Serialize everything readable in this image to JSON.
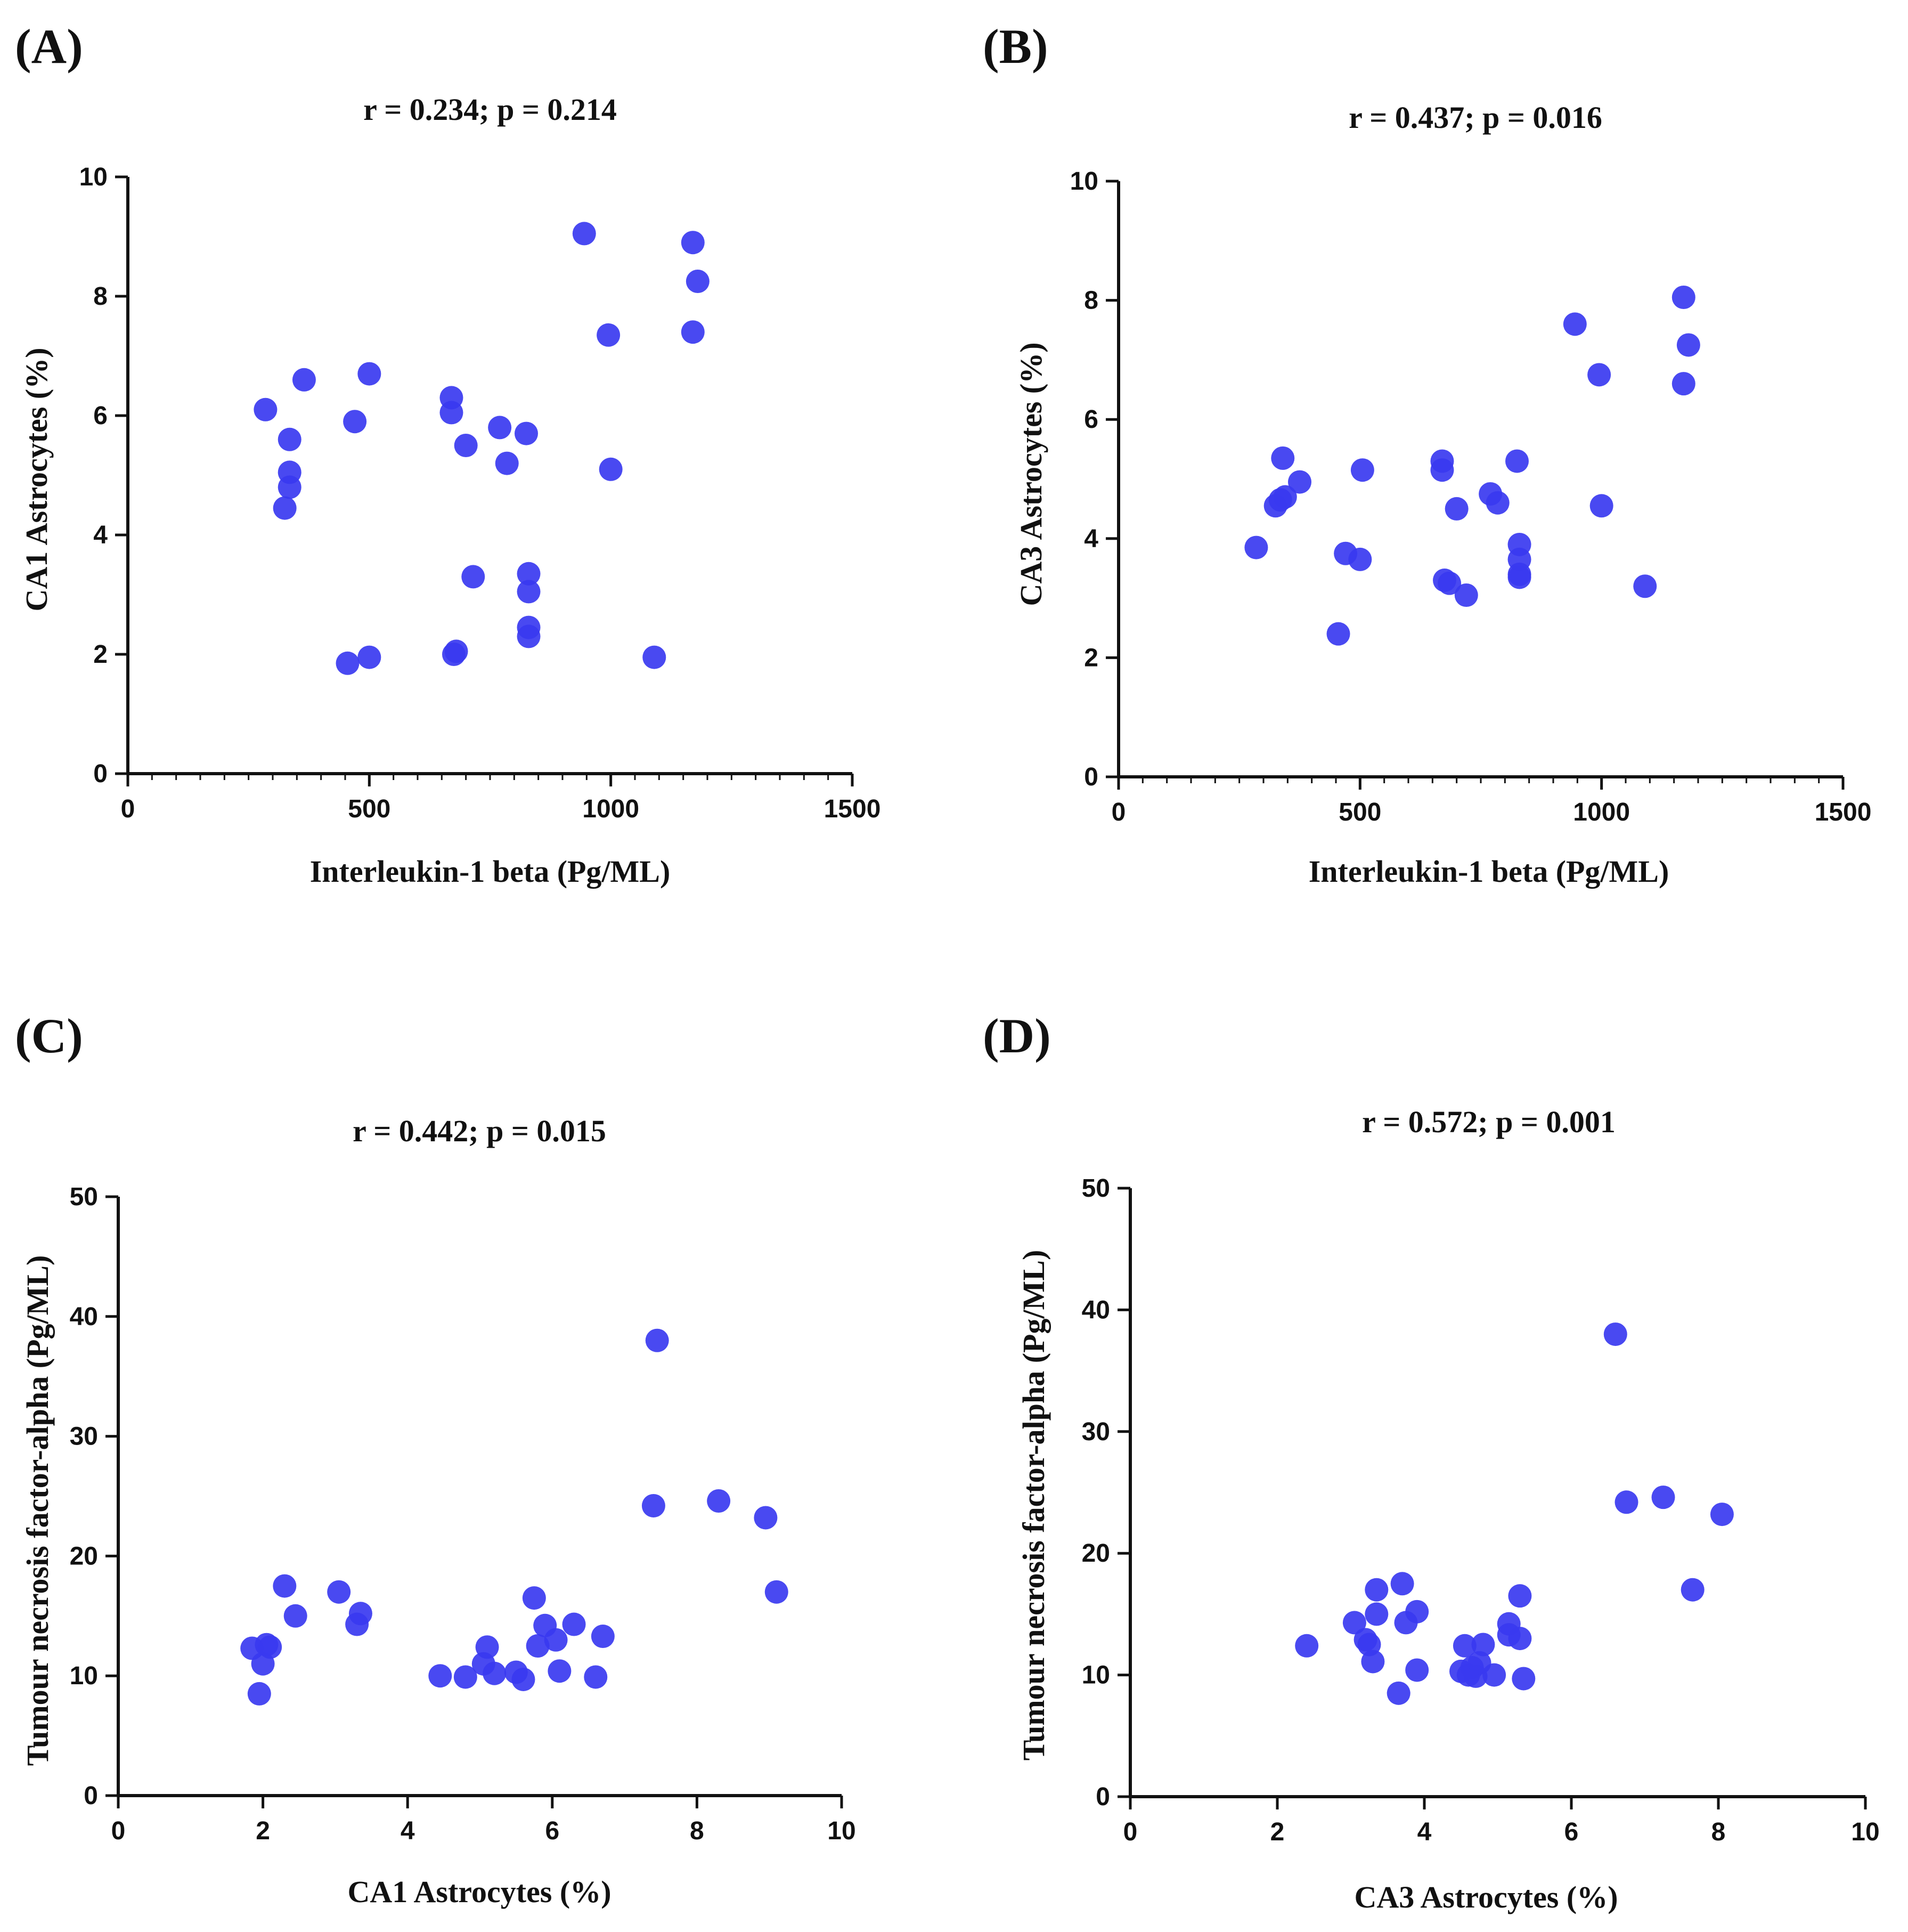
{
  "chart_data": [
    {
      "type": "scatter",
      "panel_label": "(A)",
      "title": "r = 0.234; p = 0.214",
      "xlabel": "Interleukin-1 beta (Pg/ML)",
      "ylabel": "CA1 Astrocytes (%)",
      "xlim": [
        0,
        1500
      ],
      "ylim": [
        0,
        10
      ],
      "xticks": [
        "0",
        "500",
        "1000",
        "1500"
      ],
      "yticks": [
        "0",
        "2",
        "4",
        "6",
        "8",
        "10"
      ],
      "marker_color": "#3a3af0",
      "points": [
        [
          285,
          6.1
        ],
        [
          325,
          4.45
        ],
        [
          335,
          5.6
        ],
        [
          335,
          5.05
        ],
        [
          335,
          4.8
        ],
        [
          365,
          6.6
        ],
        [
          455,
          1.85
        ],
        [
          470,
          5.9
        ],
        [
          500,
          1.95
        ],
        [
          500,
          6.7
        ],
        [
          670,
          6.3
        ],
        [
          670,
          6.05
        ],
        [
          675,
          2.0
        ],
        [
          680,
          2.05
        ],
        [
          700,
          5.5
        ],
        [
          715,
          3.3
        ],
        [
          770,
          5.8
        ],
        [
          785,
          5.2
        ],
        [
          825,
          5.7
        ],
        [
          830,
          3.35
        ],
        [
          830,
          3.05
        ],
        [
          830,
          2.45
        ],
        [
          830,
          2.3
        ],
        [
          945,
          9.05
        ],
        [
          995,
          7.35
        ],
        [
          1000,
          5.1
        ],
        [
          1090,
          1.95
        ],
        [
          1170,
          8.9
        ],
        [
          1170,
          7.4
        ],
        [
          1180,
          8.25
        ]
      ]
    },
    {
      "type": "scatter",
      "panel_label": "(B)",
      "title": "r = 0.437; p = 0.016",
      "xlabel": "Interleukin-1 beta (Pg/ML)",
      "ylabel": "CA3 Astrocytes (%)",
      "xlim": [
        0,
        1500
      ],
      "ylim": [
        0,
        10
      ],
      "xticks": [
        "0",
        "500",
        "1000",
        "1500"
      ],
      "yticks": [
        "0",
        "2",
        "4",
        "6",
        "8",
        "10"
      ],
      "marker_color": "#3a3af0",
      "points": [
        [
          285,
          3.85
        ],
        [
          325,
          4.55
        ],
        [
          335,
          4.65
        ],
        [
          340,
          5.35
        ],
        [
          345,
          4.7
        ],
        [
          375,
          4.95
        ],
        [
          455,
          2.4
        ],
        [
          470,
          3.75
        ],
        [
          500,
          3.65
        ],
        [
          505,
          5.15
        ],
        [
          670,
          5.3
        ],
        [
          670,
          5.15
        ],
        [
          675,
          3.3
        ],
        [
          685,
          3.25
        ],
        [
          700,
          4.5
        ],
        [
          720,
          3.05
        ],
        [
          770,
          4.75
        ],
        [
          785,
          4.6
        ],
        [
          825,
          5.3
        ],
        [
          830,
          3.9
        ],
        [
          830,
          3.65
        ],
        [
          830,
          3.4
        ],
        [
          830,
          3.35
        ],
        [
          945,
          7.6
        ],
        [
          995,
          6.75
        ],
        [
          1000,
          4.55
        ],
        [
          1090,
          3.2
        ],
        [
          1170,
          8.05
        ],
        [
          1170,
          6.6
        ],
        [
          1180,
          7.25
        ]
      ]
    },
    {
      "type": "scatter",
      "panel_label": "(C)",
      "title": "r = 0.442; p = 0.015",
      "xlabel": "CA1 Astrocytes (%)",
      "ylabel": "Tumour necrosis factor-alpha (Pg/ML)",
      "xlim": [
        0,
        10
      ],
      "ylim": [
        0,
        50
      ],
      "xticks": [
        "0",
        "2",
        "4",
        "6",
        "8",
        "10"
      ],
      "yticks": [
        "0",
        "10",
        "20",
        "30",
        "40",
        "50"
      ],
      "marker_color": "#3a3af0",
      "points": [
        [
          1.85,
          12.3
        ],
        [
          1.95,
          8.5
        ],
        [
          2.0,
          11.0
        ],
        [
          2.05,
          12.6
        ],
        [
          2.1,
          12.4
        ],
        [
          2.3,
          17.5
        ],
        [
          2.45,
          15.0
        ],
        [
          3.05,
          17.0
        ],
        [
          3.3,
          14.3
        ],
        [
          3.35,
          15.2
        ],
        [
          4.45,
          10.0
        ],
        [
          4.8,
          9.9
        ],
        [
          5.05,
          11.0
        ],
        [
          5.1,
          12.4
        ],
        [
          5.2,
          10.2
        ],
        [
          5.5,
          10.3
        ],
        [
          5.6,
          9.7
        ],
        [
          5.75,
          16.5
        ],
        [
          5.8,
          12.5
        ],
        [
          5.9,
          14.2
        ],
        [
          6.05,
          13.0
        ],
        [
          6.1,
          10.4
        ],
        [
          6.3,
          14.3
        ],
        [
          6.6,
          9.9
        ],
        [
          6.7,
          13.3
        ],
        [
          7.4,
          24.2
        ],
        [
          7.45,
          38.0
        ],
        [
          8.3,
          24.6
        ],
        [
          8.95,
          23.2
        ],
        [
          9.1,
          17.0
        ]
      ]
    },
    {
      "type": "scatter",
      "panel_label": "(D)",
      "title": "r = 0.572; p = 0.001",
      "xlabel": "CA3 Astrocytes (%)",
      "ylabel": "Tumour necrosis factor-alpha (Pg/ML)",
      "xlim": [
        0,
        10
      ],
      "ylim": [
        0,
        50
      ],
      "xticks": [
        "0",
        "2",
        "4",
        "6",
        "8",
        "10"
      ],
      "yticks": [
        "0",
        "10",
        "20",
        "30",
        "40",
        "50"
      ],
      "marker_color": "#3a3af0",
      "points": [
        [
          2.4,
          12.4
        ],
        [
          3.05,
          14.3
        ],
        [
          3.2,
          12.9
        ],
        [
          3.25,
          12.5
        ],
        [
          3.3,
          11.1
        ],
        [
          3.35,
          15.0
        ],
        [
          3.35,
          17.0
        ],
        [
          3.65,
          8.5
        ],
        [
          3.7,
          17.5
        ],
        [
          3.75,
          14.3
        ],
        [
          3.9,
          10.4
        ],
        [
          3.9,
          15.2
        ],
        [
          4.5,
          10.3
        ],
        [
          4.55,
          12.4
        ],
        [
          4.6,
          10.0
        ],
        [
          4.65,
          10.6
        ],
        [
          4.7,
          9.9
        ],
        [
          4.75,
          11.0
        ],
        [
          4.8,
          12.5
        ],
        [
          4.95,
          10.0
        ],
        [
          5.15,
          14.2
        ],
        [
          5.15,
          13.3
        ],
        [
          5.3,
          16.5
        ],
        [
          5.3,
          13.0
        ],
        [
          5.35,
          9.7
        ],
        [
          6.6,
          38.0
        ],
        [
          6.75,
          24.2
        ],
        [
          7.25,
          24.6
        ],
        [
          7.65,
          17.0
        ],
        [
          8.05,
          23.2
        ]
      ]
    }
  ]
}
